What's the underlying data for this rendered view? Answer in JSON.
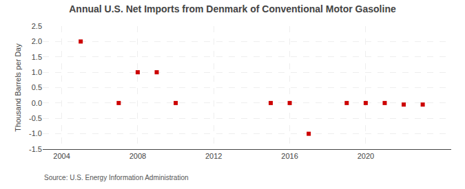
{
  "chart_data": {
    "type": "scatter",
    "title": "Annual U.S. Net Imports from Denmark of Conventional Motor Gasoline",
    "ylabel": "Thousand Barrels per Day",
    "annotations": [
      "Source: U.S. Energy Information Administration"
    ],
    "x": [
      2005,
      2007,
      2008,
      2009,
      2010,
      2015,
      2016,
      2017,
      2019,
      2020,
      2021,
      2022,
      2023
    ],
    "values": [
      2.0,
      0.0,
      1.0,
      1.0,
      0.0,
      0.0,
      0.0,
      -1.0,
      0.0,
      0.0,
      0.0,
      -0.05,
      -0.05
    ],
    "color": "#cc0000",
    "marker": "square",
    "xlim": [
      2003.0,
      2024.5
    ],
    "xticks": [
      2004,
      2008,
      2012,
      2016,
      2020
    ],
    "ylim": [
      -1.5,
      2.5
    ],
    "yticks": [
      -1.5,
      {
        "value": -1.0,
        "label": "-1.0"
      },
      -0.5,
      {
        "value": 0.0,
        "label": "0.0"
      },
      0.5,
      {
        "value": 1.0,
        "label": "1.0"
      },
      1.5,
      {
        "value": 2.0,
        "label": "2.0"
      },
      2.5
    ],
    "grid": true
  }
}
